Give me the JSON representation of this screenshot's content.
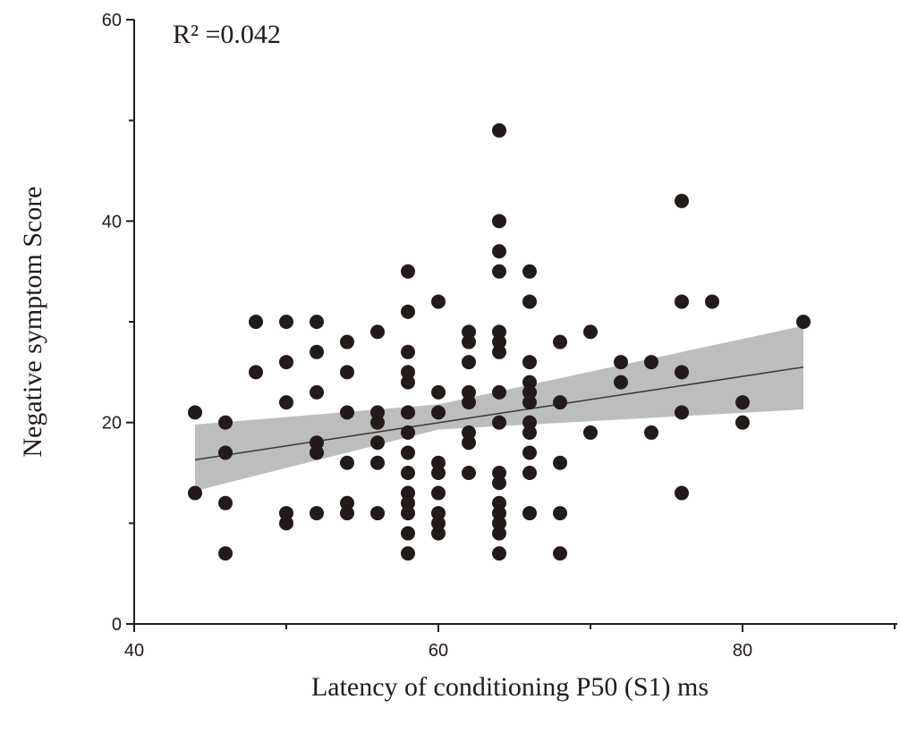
{
  "chart_data": {
    "type": "scatter",
    "title": "",
    "annotation": "R² =0.042",
    "xlabel": "Latency of conditioning P50 (S1) ms",
    "ylabel": "Negative symptom Score",
    "xlim": [
      40,
      90
    ],
    "ylim": [
      0,
      60
    ],
    "x_ticks": [
      "40",
      "60",
      "80"
    ],
    "y_ticks": [
      "0",
      "20",
      "40",
      "60"
    ],
    "grid": false,
    "colors": {
      "points": "#231a1a",
      "band": "#bcbdbd",
      "line": "#3a3535"
    },
    "fit_line": {
      "x": [
        44,
        84
      ],
      "y": [
        16.3,
        25.5
      ]
    },
    "confidence_band": {
      "x": [
        44,
        60,
        84
      ],
      "lower": [
        13.2,
        19.3,
        21.3
      ],
      "upper": [
        19.8,
        21.8,
        29.6
      ]
    },
    "points": [
      [
        44,
        21
      ],
      [
        44,
        13
      ],
      [
        46,
        20
      ],
      [
        46,
        17
      ],
      [
        46,
        12
      ],
      [
        46,
        7
      ],
      [
        48,
        30
      ],
      [
        48,
        25
      ],
      [
        50,
        30
      ],
      [
        50,
        26
      ],
      [
        50,
        22
      ],
      [
        50,
        11
      ],
      [
        50,
        10
      ],
      [
        52,
        30
      ],
      [
        52,
        27
      ],
      [
        52,
        23
      ],
      [
        52,
        18
      ],
      [
        52,
        17
      ],
      [
        52,
        11
      ],
      [
        54,
        28
      ],
      [
        54,
        25
      ],
      [
        54,
        21
      ],
      [
        54,
        16
      ],
      [
        54,
        12
      ],
      [
        54,
        11
      ],
      [
        56,
        29
      ],
      [
        56,
        21
      ],
      [
        56,
        20
      ],
      [
        56,
        18
      ],
      [
        56,
        16
      ],
      [
        56,
        11
      ],
      [
        58,
        35
      ],
      [
        58,
        31
      ],
      [
        58,
        27
      ],
      [
        58,
        25
      ],
      [
        58,
        24
      ],
      [
        58,
        21
      ],
      [
        58,
        19
      ],
      [
        58,
        17
      ],
      [
        58,
        15
      ],
      [
        58,
        13
      ],
      [
        58,
        12
      ],
      [
        58,
        11
      ],
      [
        58,
        9
      ],
      [
        58,
        7
      ],
      [
        60,
        32
      ],
      [
        60,
        23
      ],
      [
        60,
        21
      ],
      [
        60,
        16
      ],
      [
        60,
        15
      ],
      [
        60,
        13
      ],
      [
        60,
        11
      ],
      [
        60,
        10
      ],
      [
        60,
        9
      ],
      [
        62,
        29
      ],
      [
        62,
        28
      ],
      [
        62,
        26
      ],
      [
        62,
        23
      ],
      [
        62,
        22
      ],
      [
        62,
        19
      ],
      [
        62,
        18
      ],
      [
        62,
        15
      ],
      [
        64,
        49
      ],
      [
        64,
        40
      ],
      [
        64,
        37
      ],
      [
        64,
        35
      ],
      [
        64,
        29
      ],
      [
        64,
        28
      ],
      [
        64,
        27
      ],
      [
        64,
        23
      ],
      [
        64,
        20
      ],
      [
        64,
        15
      ],
      [
        64,
        14
      ],
      [
        64,
        12
      ],
      [
        64,
        11
      ],
      [
        64,
        10
      ],
      [
        64,
        9
      ],
      [
        64,
        7
      ],
      [
        66,
        35
      ],
      [
        66,
        32
      ],
      [
        66,
        26
      ],
      [
        66,
        24
      ],
      [
        66,
        23
      ],
      [
        66,
        22
      ],
      [
        66,
        20
      ],
      [
        66,
        19
      ],
      [
        66,
        17
      ],
      [
        66,
        15
      ],
      [
        66,
        11
      ],
      [
        68,
        28
      ],
      [
        68,
        22
      ],
      [
        68,
        16
      ],
      [
        68,
        11
      ],
      [
        68,
        7
      ],
      [
        70,
        29
      ],
      [
        70,
        19
      ],
      [
        72,
        26
      ],
      [
        72,
        24
      ],
      [
        74,
        26
      ],
      [
        74,
        19
      ],
      [
        76,
        42
      ],
      [
        76,
        32
      ],
      [
        76,
        25
      ],
      [
        76,
        21
      ],
      [
        76,
        13
      ],
      [
        78,
        32
      ],
      [
        80,
        22
      ],
      [
        80,
        20
      ],
      [
        84,
        30
      ]
    ]
  }
}
